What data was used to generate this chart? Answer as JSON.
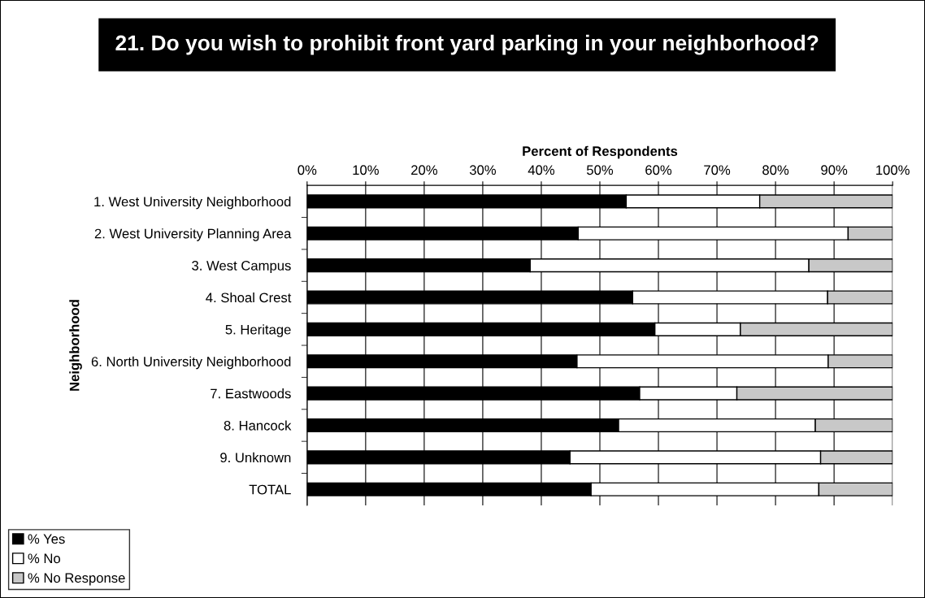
{
  "chart_data": {
    "type": "bar",
    "orientation": "horizontal",
    "stacked": true,
    "title": "21. Do you wish to prohibit front yard parking in your neighborhood?",
    "xlabel": "Percent of Respondents",
    "ylabel": "Neighborhood",
    "categories": [
      "1. West University Neighborhood",
      "2. West University Planning Area",
      "3. West Campus",
      "4. Shoal Crest",
      "5. Heritage",
      "6. North University Neighborhood",
      "7. Eastwoods",
      "8. Hancock",
      "9. Unknown",
      "TOTAL"
    ],
    "series": [
      {
        "name": "% Yes",
        "color": "#000000",
        "values": [
          54.5,
          46.3,
          38.1,
          55.6,
          59.4,
          46.1,
          56.8,
          53.2,
          44.9,
          48.5
        ]
      },
      {
        "name": "% No",
        "color": "#ffffff",
        "values": [
          22.8,
          46.1,
          47.6,
          33.3,
          14.6,
          42.9,
          16.6,
          33.6,
          42.8,
          38.9
        ]
      },
      {
        "name": "% No Response",
        "color": "#c8c8c8",
        "values": [
          22.7,
          7.6,
          14.3,
          11.1,
          26.0,
          11.0,
          26.6,
          13.2,
          12.3,
          12.6
        ]
      }
    ],
    "xlim": [
      0,
      100
    ],
    "xticks": [
      {
        "value": 0,
        "label": "0%"
      },
      {
        "value": 10,
        "label": "10%"
      },
      {
        "value": 20,
        "label": "20%"
      },
      {
        "value": 30,
        "label": "30%"
      },
      {
        "value": 40,
        "label": "40%"
      },
      {
        "value": 50,
        "label": "50%"
      },
      {
        "value": 60,
        "label": "60%"
      },
      {
        "value": 70,
        "label": "70%"
      },
      {
        "value": 80,
        "label": "80%"
      },
      {
        "value": 90,
        "label": "90%"
      },
      {
        "value": 100,
        "label": "100%"
      }
    ],
    "grid": "x",
    "legend": "bottom left"
  }
}
